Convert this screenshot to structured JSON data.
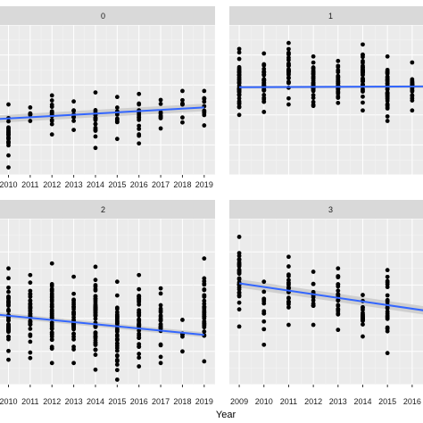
{
  "colors": {
    "panel_bg": "#ebebeb",
    "strip_bg": "#d9d9d9",
    "grid_major": "#ffffff",
    "grid_minor": "#f4f4f4",
    "points": "#000000",
    "trend_line": "#3366ff",
    "confidence_band": "#c8c8c8"
  },
  "chart_data": {
    "type": "scatter",
    "xlabel": "Year",
    "ylabel": "",
    "grid": true,
    "smoothing": "linear trend line with confidence band",
    "ylim": [
      0,
      10
    ],
    "panels": [
      {
        "strip_label": "0",
        "x_ticks": [
          "2010",
          "2011",
          "2012",
          "2013",
          "2014",
          "2015",
          "2016",
          "2017",
          "2018",
          "2019"
        ],
        "xlim": [
          2009.2,
          2019.5
        ],
        "columns": [
          {
            "x": 2010,
            "min": 0.5,
            "max": 4.7,
            "n": 24
          },
          {
            "x": 2011,
            "min": 3.6,
            "max": 4.5,
            "n": 4
          },
          {
            "x": 2012,
            "min": 2.7,
            "max": 5.3,
            "n": 14
          },
          {
            "x": 2013,
            "min": 3.0,
            "max": 4.9,
            "n": 7
          },
          {
            "x": 2014,
            "min": 1.8,
            "max": 5.5,
            "n": 16
          },
          {
            "x": 2015,
            "min": 2.4,
            "max": 5.2,
            "n": 12
          },
          {
            "x": 2016,
            "min": 2.1,
            "max": 5.4,
            "n": 14
          },
          {
            "x": 2017,
            "min": 3.1,
            "max": 5.0,
            "n": 8
          },
          {
            "x": 2018,
            "min": 3.5,
            "max": 5.6,
            "n": 5
          },
          {
            "x": 2019,
            "min": 3.3,
            "max": 5.6,
            "n": 10
          }
        ],
        "trend": {
          "x": [
            2009.2,
            2019.0
          ],
          "y": [
            3.7,
            4.5
          ],
          "se": 0.25
        }
      },
      {
        "strip_label": "1",
        "x_ticks": [],
        "xlim": [
          2008.6,
          2016.8
        ],
        "columns": [
          {
            "x": 2009,
            "min": 4.0,
            "max": 8.4,
            "n": 40
          },
          {
            "x": 2010,
            "min": 4.2,
            "max": 8.1,
            "n": 40
          },
          {
            "x": 2011,
            "min": 4.7,
            "max": 8.8,
            "n": 30
          },
          {
            "x": 2012,
            "min": 4.6,
            "max": 7.9,
            "n": 40
          },
          {
            "x": 2013,
            "min": 4.8,
            "max": 7.6,
            "n": 30
          },
          {
            "x": 2014,
            "min": 4.3,
            "max": 8.7,
            "n": 45
          },
          {
            "x": 2015,
            "min": 3.6,
            "max": 7.9,
            "n": 45
          },
          {
            "x": 2016,
            "min": 4.3,
            "max": 7.5,
            "n": 25
          }
        ],
        "trend": {
          "x": [
            2009.0,
            2016.8
          ],
          "y": [
            5.85,
            5.9
          ],
          "se": 0.1
        }
      },
      {
        "strip_label": "2",
        "x_ticks": [
          "2010",
          "2011",
          "2012",
          "2013",
          "2014",
          "2015",
          "2016",
          "2017",
          "2018",
          "2019"
        ],
        "xlim": [
          2009.2,
          2019.5
        ],
        "columns": [
          {
            "x": 2010,
            "min": 1.5,
            "max": 7.0,
            "n": 45
          },
          {
            "x": 2011,
            "min": 1.6,
            "max": 6.6,
            "n": 40
          },
          {
            "x": 2012,
            "min": 1.3,
            "max": 7.3,
            "n": 50
          },
          {
            "x": 2013,
            "min": 1.3,
            "max": 6.5,
            "n": 35
          },
          {
            "x": 2014,
            "min": 0.9,
            "max": 7.1,
            "n": 55
          },
          {
            "x": 2015,
            "min": 0.3,
            "max": 6.2,
            "n": 40
          },
          {
            "x": 2016,
            "min": 1.1,
            "max": 6.6,
            "n": 40
          },
          {
            "x": 2017,
            "min": 1.3,
            "max": 5.8,
            "n": 25
          },
          {
            "x": 2018,
            "min": 2.0,
            "max": 3.9,
            "n": 5
          },
          {
            "x": 2019,
            "min": 1.4,
            "max": 7.6,
            "n": 35
          }
        ],
        "trend": {
          "x": [
            2009.2,
            2019.0
          ],
          "y": [
            4.25,
            3.0
          ],
          "se": 0.15
        }
      },
      {
        "strip_label": "3",
        "x_ticks": [
          "2009",
          "2010",
          "2011",
          "2012",
          "2013",
          "2014",
          "2015",
          "2016",
          "20"
        ],
        "xlim": [
          2008.6,
          2016.8
        ],
        "columns": [
          {
            "x": 2009,
            "min": 3.5,
            "max": 8.9,
            "n": 30
          },
          {
            "x": 2010,
            "min": 2.4,
            "max": 6.2,
            "n": 10
          },
          {
            "x": 2011,
            "min": 3.6,
            "max": 7.7,
            "n": 22
          },
          {
            "x": 2012,
            "min": 3.6,
            "max": 6.8,
            "n": 14
          },
          {
            "x": 2013,
            "min": 3.3,
            "max": 7.0,
            "n": 22
          },
          {
            "x": 2014,
            "min": 2.9,
            "max": 5.4,
            "n": 18
          },
          {
            "x": 2015,
            "min": 1.9,
            "max": 6.9,
            "n": 25
          }
        ],
        "trend": {
          "x": [
            2009.0,
            2016.8
          ],
          "y": [
            6.1,
            4.4
          ],
          "se": 0.25
        }
      }
    ]
  }
}
